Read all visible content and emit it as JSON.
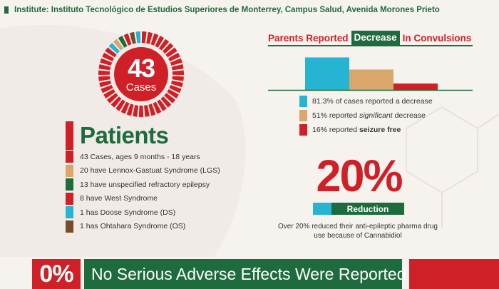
{
  "header": {
    "institute": "Institute: Instituto Tecnológico de Estudios Superiores de Monterrey, Campus Salud, Avenida Morones Prieto"
  },
  "cases": {
    "count": "43",
    "label": "Cases"
  },
  "patients": {
    "title": "Patients",
    "items": [
      {
        "text": "43 Cases, ages 9 months - 18 years",
        "color": "#cf2027"
      },
      {
        "text": "20 have Lennox-Gastuat Syndrome (LGS)",
        "color": "#d9a66b"
      },
      {
        "text": "13 have unspecified refractory epilepsy",
        "color": "#1e6b3e"
      },
      {
        "text": "8 have West Syndrome",
        "color": "#cf2027"
      },
      {
        "text": "1 has Doose Syndrome (DS)",
        "color": "#27b3d2"
      },
      {
        "text": "1 has Ohtahara Syndrome (OS)",
        "color": "#7a4a2a"
      }
    ]
  },
  "convulsions": {
    "title_before": "Parents Reported",
    "title_highlight": "Decrease",
    "title_after": "In Convulsions",
    "legend": [
      {
        "pre": "81.3% of cases reported a decrease",
        "em": "",
        "post": "",
        "color": "#27b3d2"
      },
      {
        "pre": "51% reported ",
        "em": "significant",
        "post": " decrease",
        "color": "#d9a66b"
      },
      {
        "pre": "16% reported ",
        "strong": "seizure free",
        "post": "",
        "color": "#cf2027"
      }
    ]
  },
  "chart_data": {
    "type": "bar",
    "title": "Parents Reported Decrease In Convulsions",
    "categories": [
      "decrease",
      "significant decrease",
      "seizure free"
    ],
    "values": [
      81.3,
      51,
      16
    ],
    "colors": [
      "#27b3d2",
      "#d9a66b",
      "#cf2027"
    ],
    "ylim": [
      0,
      100
    ],
    "xlabel": "",
    "ylabel": "",
    "grid": false
  },
  "reduction": {
    "percent": "20%",
    "label": "Reduction",
    "note": "Over 20% reduced their anti-epileptic pharma drug use because of Cannabidiol"
  },
  "footer": {
    "percent": "0%",
    "message": "No Serious Adverse Effects Were Reported"
  },
  "colors": {
    "red": "#cf2027",
    "green": "#1e6b3e",
    "cyan": "#27b3d2",
    "tan": "#d9a66b",
    "brown": "#7a4a2a"
  }
}
